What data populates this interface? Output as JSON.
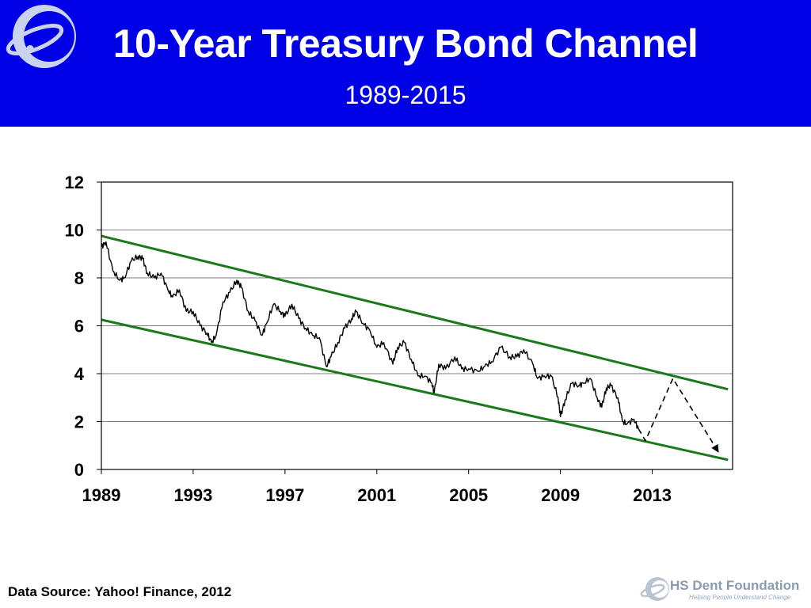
{
  "header": {
    "title": "10-Year Treasury Bond Channel",
    "subtitle": "1989-2015",
    "background_color": "#0000e6",
    "logo_icon": "orbit-logo-icon"
  },
  "chart_data": {
    "type": "line",
    "title": "10-Year Treasury Bond Channel",
    "subtitle": "1989-2015",
    "xlabel": "",
    "ylabel": "",
    "xlim": [
      1989,
      2016.5
    ],
    "ylim": [
      0,
      12
    ],
    "x_ticks": [
      "1989",
      "1993",
      "1997",
      "2001",
      "2005",
      "2009",
      "2013"
    ],
    "y_ticks": [
      "0",
      "2",
      "4",
      "6",
      "8",
      "10",
      "12"
    ],
    "grid": "horizontal",
    "series": [
      {
        "color": "#000000",
        "style": "solid",
        "points": [
          [
            1989.0,
            9.3
          ],
          [
            1989.2,
            9.5
          ],
          [
            1989.5,
            8.3
          ],
          [
            1989.8,
            7.9
          ],
          [
            1990.0,
            8.0
          ],
          [
            1990.3,
            8.7
          ],
          [
            1990.6,
            8.9
          ],
          [
            1990.8,
            8.8
          ],
          [
            1991.0,
            8.2
          ],
          [
            1991.3,
            8.0
          ],
          [
            1991.6,
            8.2
          ],
          [
            1991.9,
            7.5
          ],
          [
            1992.1,
            7.2
          ],
          [
            1992.4,
            7.5
          ],
          [
            1992.7,
            6.6
          ],
          [
            1993.0,
            6.6
          ],
          [
            1993.3,
            6.0
          ],
          [
            1993.6,
            5.7
          ],
          [
            1993.8,
            5.3
          ],
          [
            1994.0,
            5.6
          ],
          [
            1994.3,
            7.0
          ],
          [
            1994.6,
            7.4
          ],
          [
            1994.9,
            7.9
          ],
          [
            1995.1,
            7.6
          ],
          [
            1995.4,
            6.6
          ],
          [
            1995.7,
            6.2
          ],
          [
            1996.0,
            5.6
          ],
          [
            1996.2,
            6.1
          ],
          [
            1996.5,
            6.9
          ],
          [
            1996.8,
            6.6
          ],
          [
            1997.0,
            6.4
          ],
          [
            1997.3,
            6.9
          ],
          [
            1997.6,
            6.3
          ],
          [
            1997.9,
            5.9
          ],
          [
            1998.2,
            5.6
          ],
          [
            1998.5,
            5.5
          ],
          [
            1998.8,
            4.3
          ],
          [
            1999.0,
            4.7
          ],
          [
            1999.3,
            5.3
          ],
          [
            1999.6,
            5.9
          ],
          [
            1999.9,
            6.3
          ],
          [
            2000.1,
            6.6
          ],
          [
            2000.4,
            6.1
          ],
          [
            2000.7,
            5.8
          ],
          [
            2001.0,
            5.1
          ],
          [
            2001.3,
            5.3
          ],
          [
            2001.7,
            4.4
          ],
          [
            2001.9,
            5.1
          ],
          [
            2002.2,
            5.3
          ],
          [
            2002.5,
            4.6
          ],
          [
            2002.8,
            3.9
          ],
          [
            2003.1,
            3.9
          ],
          [
            2003.4,
            3.6
          ],
          [
            2003.5,
            3.2
          ],
          [
            2003.7,
            4.4
          ],
          [
            2004.0,
            4.2
          ],
          [
            2004.4,
            4.7
          ],
          [
            2004.7,
            4.2
          ],
          [
            2005.0,
            4.2
          ],
          [
            2005.4,
            4.1
          ],
          [
            2005.7,
            4.3
          ],
          [
            2006.0,
            4.5
          ],
          [
            2006.4,
            5.1
          ],
          [
            2006.8,
            4.7
          ],
          [
            2007.1,
            4.7
          ],
          [
            2007.4,
            5.0
          ],
          [
            2007.8,
            4.4
          ],
          [
            2008.0,
            3.8
          ],
          [
            2008.3,
            3.9
          ],
          [
            2008.6,
            3.9
          ],
          [
            2008.9,
            3.0
          ],
          [
            2009.0,
            2.2
          ],
          [
            2009.2,
            2.9
          ],
          [
            2009.5,
            3.6
          ],
          [
            2009.8,
            3.5
          ],
          [
            2010.0,
            3.6
          ],
          [
            2010.3,
            3.8
          ],
          [
            2010.6,
            3.0
          ],
          [
            2010.8,
            2.6
          ],
          [
            2011.0,
            3.4
          ],
          [
            2011.2,
            3.5
          ],
          [
            2011.5,
            3.0
          ],
          [
            2011.7,
            2.0
          ],
          [
            2011.9,
            1.9
          ],
          [
            2012.2,
            2.1
          ],
          [
            2012.4,
            1.7
          ]
        ]
      },
      {
        "color": "#000000",
        "style": "dashed",
        "points": [
          [
            2012.4,
            1.7
          ],
          [
            2012.7,
            1.2
          ],
          [
            2013.9,
            3.8
          ],
          [
            2015.9,
            0.7
          ]
        ]
      },
      {
        "color": "#1a7a1a",
        "style": "solid",
        "points": [
          [
            1989.0,
            9.75
          ],
          [
            2016.3,
            3.35
          ]
        ]
      },
      {
        "color": "#1a7a1a",
        "style": "solid",
        "points": [
          [
            1989.0,
            6.25
          ],
          [
            2016.3,
            0.4
          ]
        ]
      }
    ]
  },
  "footer": {
    "source": "Data Source: Yahoo! Finance, 2012",
    "brand_name": "HS Dent Foundation",
    "brand_tagline": "Helping People Understand Change",
    "brand_icon": "orbit-logo-icon"
  }
}
